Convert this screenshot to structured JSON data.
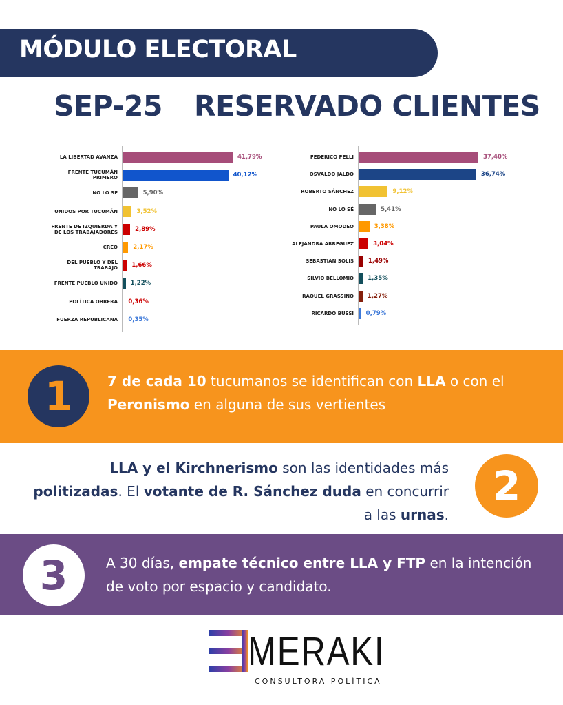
{
  "header": {
    "title": "MÓDULO ELECTORAL",
    "period": "SEP-25",
    "subtitle": "RESERVADO CLIENTES"
  },
  "chart_data": [
    {
      "type": "bar",
      "orientation": "horizontal",
      "categories": [
        "LA LIBERTAD AVANZA",
        "FRENTE TUCUMÁN PRIMERO",
        "NO LO SÉ",
        "UNIDOS POR TUCUMÁN",
        "FRENTE DE IZQUIERDA Y DE LOS TRABAJADORES",
        "CREO",
        "DEL PUEBLO Y DEL TRABAJO",
        "FRENTE PUEBLO UNIDO",
        "POLÍTICA OBRERA",
        "FUERZA REPUBLICANA"
      ],
      "values": [
        41.79,
        40.12,
        5.9,
        3.52,
        2.89,
        2.17,
        1.66,
        1.22,
        0.36,
        0.35
      ],
      "value_labels": [
        "41,79%",
        "40,12%",
        "5,90%",
        "3,52%",
        "2,89%",
        "2,17%",
        "1,66%",
        "1,22%",
        "0,36%",
        "0,35%"
      ],
      "colors": [
        "#a64d79",
        "#1155cc",
        "#666666",
        "#f1c232",
        "#cc0000",
        "#ff9900",
        "#cc0000",
        "#134f5c",
        "#cc0000",
        "#3c78d8"
      ]
    },
    {
      "type": "bar",
      "orientation": "horizontal",
      "categories": [
        "FEDERICO PELLI",
        "OSVALDO JALDO",
        "ROBERTO SÁNCHEZ",
        "NO LO SÉ",
        "PAULA OMODEO",
        "ALEJANDRA ARREGUEZ",
        "SEBASTIÁN SOLIS",
        "SILVIO BELLOMIO",
        "RAQUEL GRASSINO",
        "RICARDO BUSSI"
      ],
      "values": [
        37.4,
        36.74,
        9.12,
        5.41,
        3.38,
        3.04,
        1.49,
        1.35,
        1.27,
        0.79
      ],
      "value_labels": [
        "37,40%",
        "36,74%",
        "9,12%",
        "5,41%",
        "3,38%",
        "3,04%",
        "1,49%",
        "1,35%",
        "1,27%",
        "0,79%"
      ],
      "colors": [
        "#a64d79",
        "#1c4587",
        "#f1c232",
        "#666666",
        "#ff9900",
        "#cc0000",
        "#990000",
        "#134f5c",
        "#85200c",
        "#3c78d8"
      ]
    }
  ],
  "points": [
    {
      "number": "1",
      "segments": [
        {
          "text": "7 de cada 10",
          "bold": true
        },
        {
          "text": " tucumanos se identifican con ",
          "bold": false
        },
        {
          "text": "LLA",
          "bold": true
        },
        {
          "text": " o con el ",
          "bold": false
        },
        {
          "text": "Peronismo",
          "bold": true
        },
        {
          "text": " en alguna de sus vertientes",
          "bold": false
        }
      ]
    },
    {
      "number": "2",
      "segments": [
        {
          "text": "LLA y el Kirchnerismo",
          "bold": true
        },
        {
          "text": " son las identidades más ",
          "bold": false
        },
        {
          "text": "politizadas",
          "bold": true
        },
        {
          "text": ". El ",
          "bold": false
        },
        {
          "text": "votante de R. Sánchez duda",
          "bold": true
        },
        {
          "text": " en concurrir a las ",
          "bold": false
        },
        {
          "text": "urnas",
          "bold": true
        },
        {
          "text": ".",
          "bold": false
        }
      ]
    },
    {
      "number": "3",
      "segments": [
        {
          "text": "A 30 días, ",
          "bold": false
        },
        {
          "text": "empate técnico entre LLA y FTP",
          "bold": true
        },
        {
          "text": " en la intención de voto por espacio y candidato.",
          "bold": false
        }
      ]
    }
  ],
  "logo": {
    "name": "MERAKI",
    "tagline": "CONSULTORA POLÍTICA"
  }
}
